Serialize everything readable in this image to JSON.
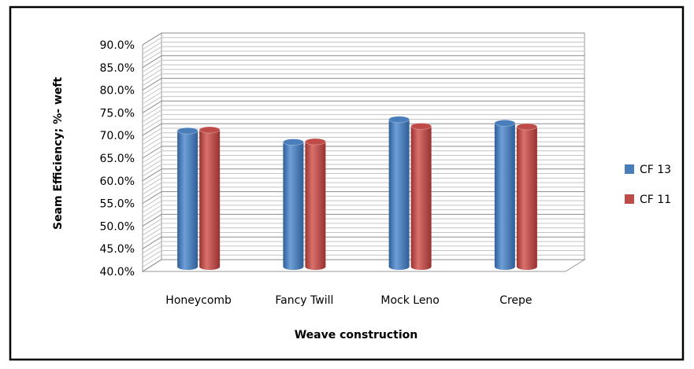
{
  "chart_data": {
    "type": "bar",
    "title": "",
    "xlabel": "Weave construction",
    "ylabel": "Seam Efficiency; %- weft",
    "categories": [
      "Honeycomb",
      "Fancy Twill",
      "Mock Leno",
      "Crepe"
    ],
    "series": [
      {
        "name": "CF 13",
        "values": [
          70.0,
          67.5,
          72.5,
          71.7
        ]
      },
      {
        "name": "CF 11",
        "values": [
          70.2,
          67.6,
          71.0,
          70.9
        ]
      }
    ],
    "ylim": [
      40.0,
      90.0
    ],
    "ytick_step": 5.0,
    "ytick_labels": [
      "40.0%",
      "45.0%",
      "50.0%",
      "55.0%",
      "60.0%",
      "65.0%",
      "70.0%",
      "75.0%",
      "80.0%",
      "85.0%",
      "90.0%"
    ],
    "grid": true,
    "legend_position": "right",
    "colors": {
      "CF 13": "#4a7ebb",
      "CF 11": "#be4b48"
    }
  }
}
